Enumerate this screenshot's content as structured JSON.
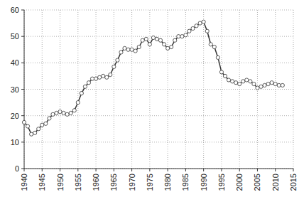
{
  "chart_data": {
    "type": "line",
    "x": [
      1940,
      1941,
      1942,
      1943,
      1944,
      1945,
      1946,
      1947,
      1948,
      1949,
      1950,
      1951,
      1952,
      1953,
      1954,
      1955,
      1956,
      1957,
      1958,
      1959,
      1960,
      1961,
      1962,
      1963,
      1964,
      1965,
      1966,
      1967,
      1968,
      1969,
      1970,
      1971,
      1972,
      1973,
      1974,
      1975,
      1976,
      1977,
      1978,
      1979,
      1980,
      1981,
      1982,
      1983,
      1984,
      1985,
      1986,
      1987,
      1988,
      1989,
      1990,
      1991,
      1992,
      1993,
      1994,
      1995,
      1996,
      1997,
      1998,
      1999,
      2000,
      2001,
      2002,
      2003,
      2004,
      2005,
      2006,
      2007,
      2008,
      2009,
      2010,
      2011,
      2012
    ],
    "values": [
      17.5,
      16,
      13,
      13.5,
      15,
      16.5,
      17,
      19,
      20.5,
      21,
      21.5,
      21,
      20.5,
      21,
      22,
      25,
      28.5,
      31,
      32.5,
      34,
      34,
      34.5,
      35,
      34.5,
      35.5,
      38.5,
      41,
      44,
      45.5,
      45,
      45,
      44.5,
      46,
      48.5,
      49,
      47,
      49.5,
      49,
      48.5,
      47,
      45.5,
      46,
      48.5,
      50,
      50,
      50.5,
      52,
      53,
      54,
      55,
      55.5,
      52,
      47,
      46,
      42,
      36.5,
      35,
      33.5,
      33,
      32.5,
      32,
      33,
      33.5,
      33,
      32,
      30.5,
      31,
      31.5,
      32,
      32.5,
      32,
      31.5,
      31.5
    ],
    "color": "#333333",
    "marker": "circle",
    "xlim": [
      1940,
      2015
    ],
    "xticks": [
      1940,
      1945,
      1950,
      1955,
      1960,
      1965,
      1970,
      1975,
      1980,
      1985,
      1990,
      1995,
      2000,
      2005,
      2010,
      2015
    ],
    "ylim": [
      0,
      60
    ],
    "yticks": [
      0,
      10,
      20,
      30,
      40,
      50,
      60
    ],
    "grid": true
  }
}
